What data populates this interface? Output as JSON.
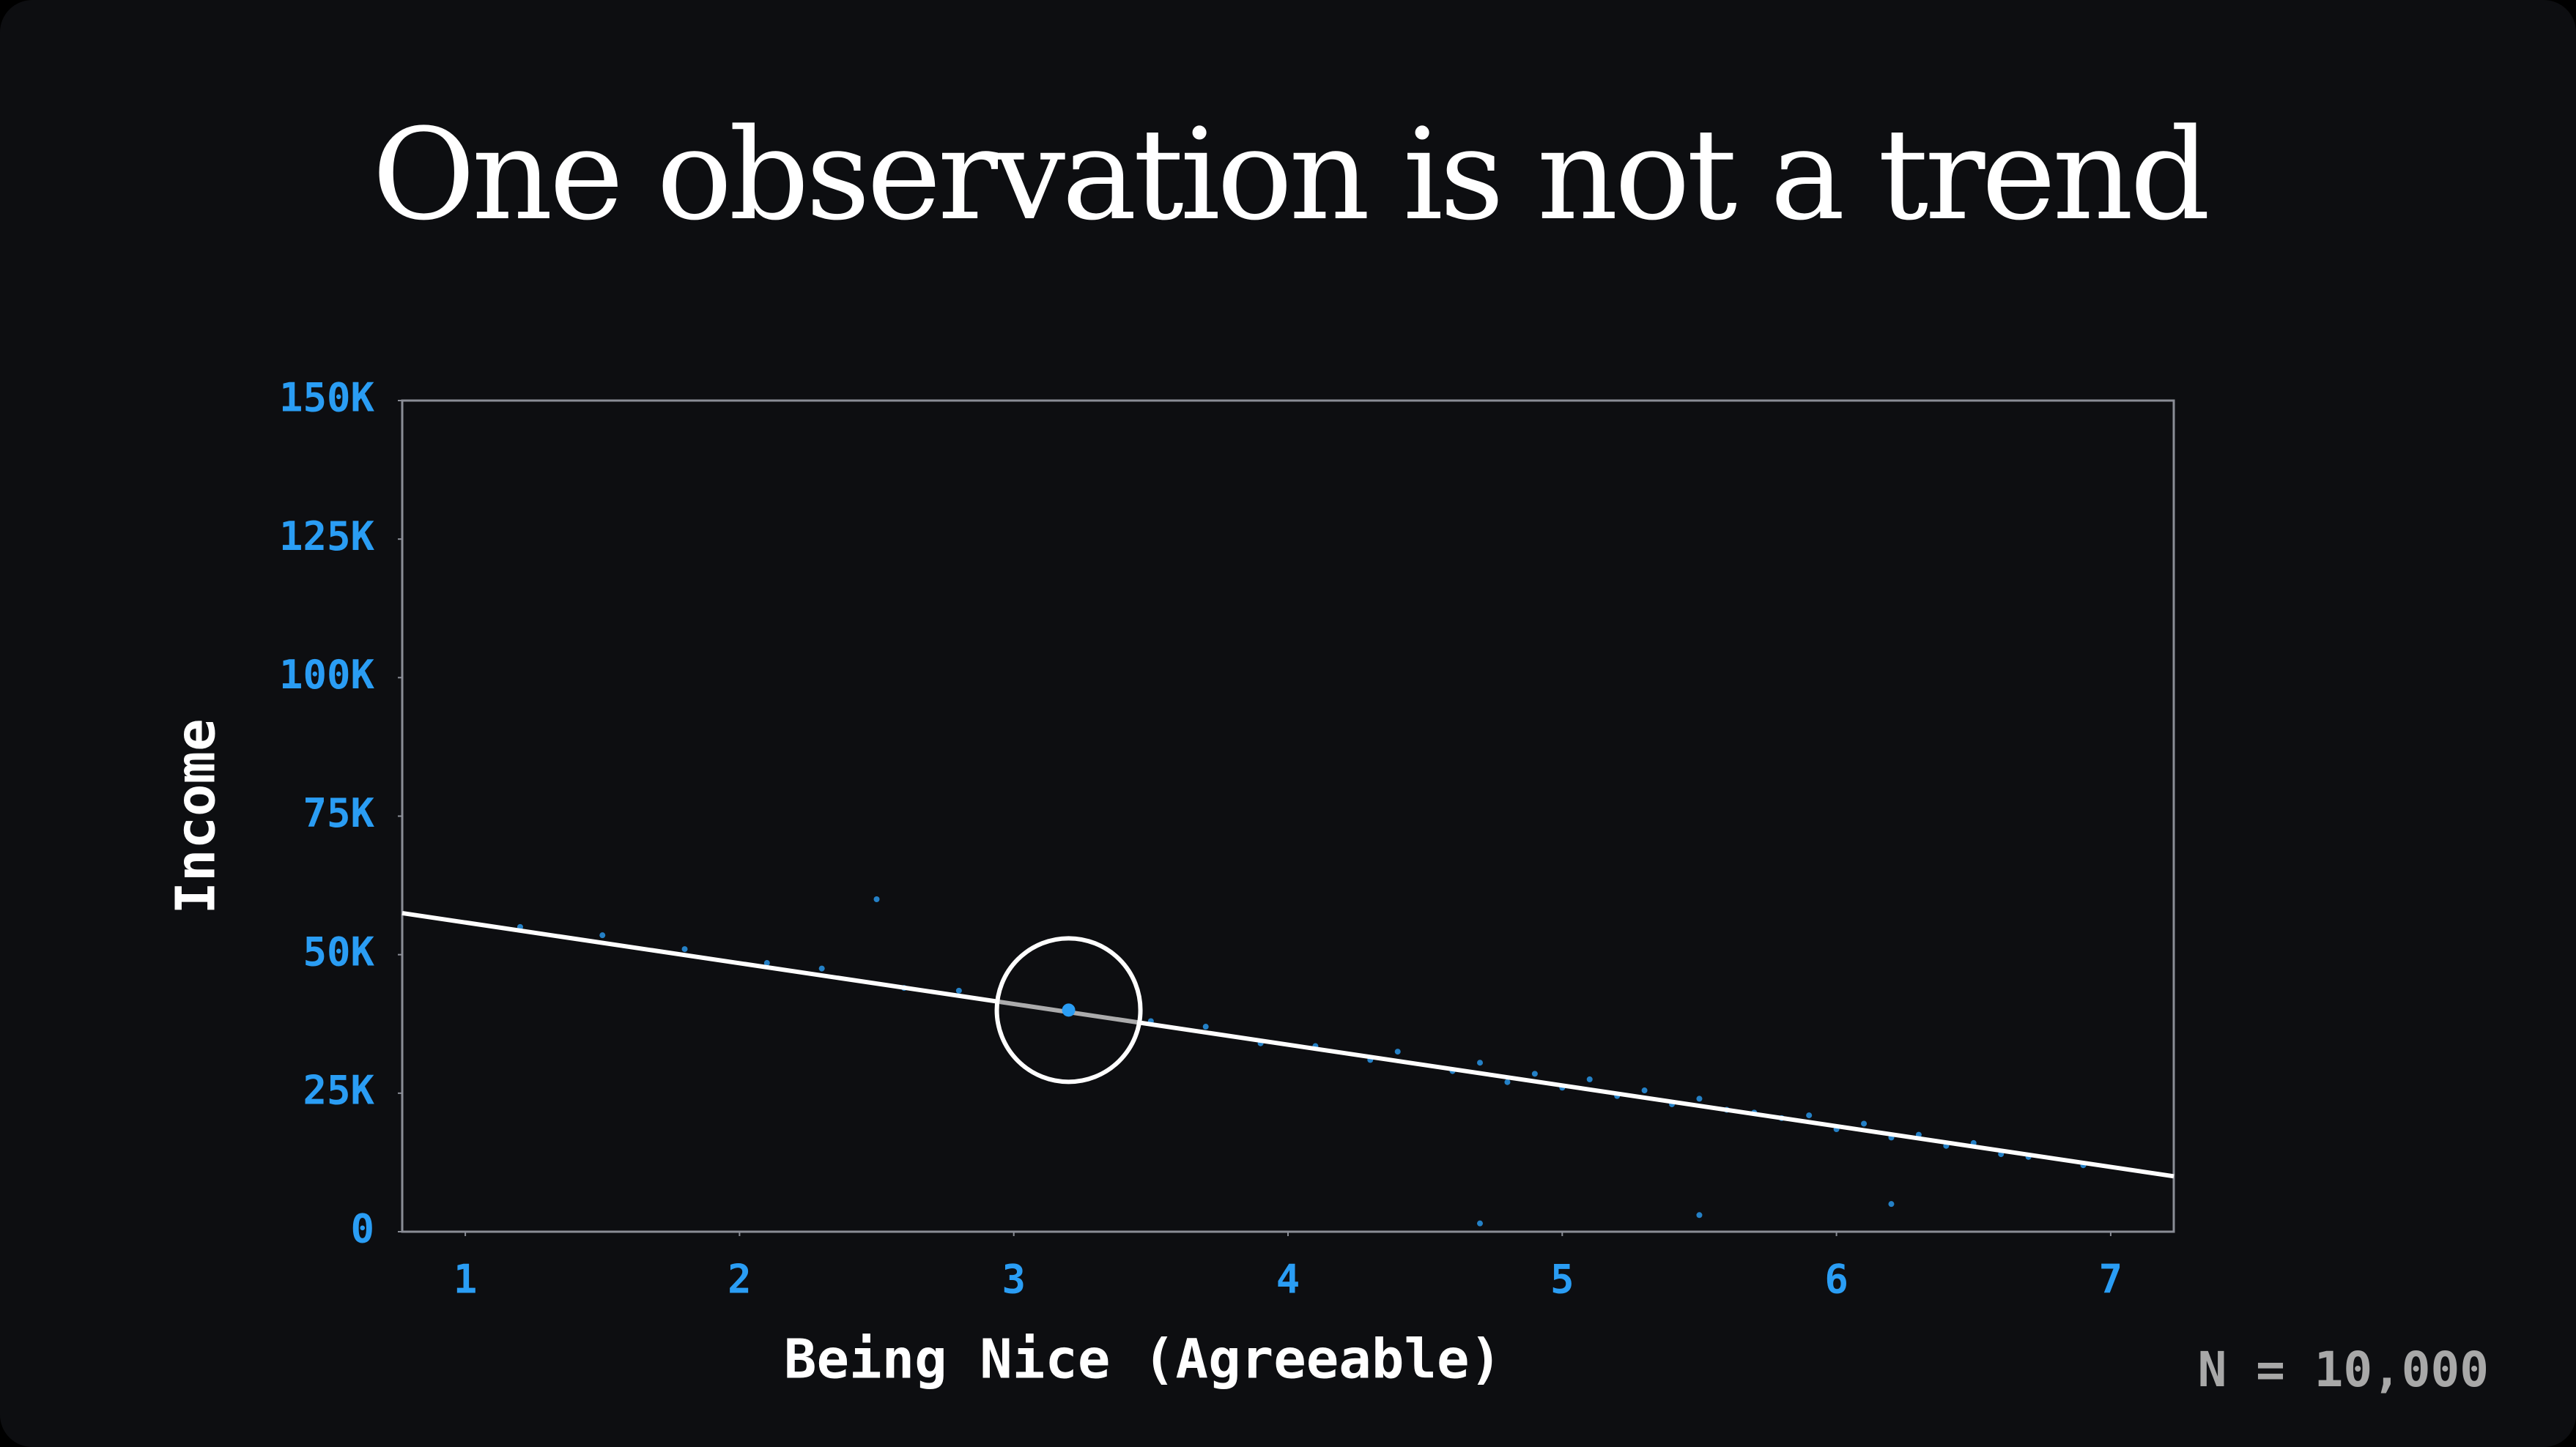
{
  "chart_data": {
    "type": "scatter",
    "title": "One observation is not a trend",
    "xlabel": "Being Nice (Agreeable)",
    "ylabel": "Income",
    "annotation": "N = 10,000",
    "xlim": [
      0.77,
      7.23
    ],
    "ylim": [
      0,
      150000
    ],
    "xticks": [
      1,
      2,
      3,
      4,
      5,
      6,
      7
    ],
    "yticks": [
      0,
      {
        "value": 25000,
        "label": "25K"
      },
      {
        "value": 50000,
        "label": "50K"
      },
      {
        "value": 75000,
        "label": "75K"
      },
      {
        "value": 100000,
        "label": "100K"
      },
      {
        "value": 125000,
        "label": "125K"
      },
      {
        "value": 150000,
        "label": "150K"
      }
    ],
    "points": {
      "color": "#2a9df4",
      "x": [
        1.2,
        1.5,
        1.8,
        2.1,
        2.3,
        2.6,
        2.8,
        3.5,
        3.7,
        3.9,
        4.1,
        4.3,
        4.4,
        4.6,
        4.7,
        4.8,
        4.9,
        5.0,
        5.1,
        5.2,
        5.3,
        5.4,
        5.5,
        5.6,
        5.7,
        5.8,
        5.9,
        6.0,
        6.1,
        6.2,
        6.3,
        6.4,
        6.5,
        6.6,
        6.7,
        6.9,
        2.5,
        5.5,
        4.7,
        6.2
      ],
      "y": [
        55000,
        53500,
        51000,
        48500,
        47500,
        44000,
        43500,
        38000,
        37000,
        34000,
        33500,
        31000,
        32500,
        29000,
        30500,
        27000,
        28500,
        26000,
        27500,
        24500,
        25500,
        23000,
        24000,
        22000,
        21500,
        20500,
        21000,
        18500,
        19500,
        17000,
        17500,
        15500,
        16000,
        14000,
        13500,
        12000,
        60000,
        3000,
        1500,
        5000
      ]
    },
    "trend": {
      "color": "#ffffff",
      "x": [
        0.77,
        7.23
      ],
      "y": [
        57500,
        10000
      ]
    },
    "highlight": {
      "color": "#2a9df4",
      "x": 3.2,
      "y": 40000
    }
  }
}
